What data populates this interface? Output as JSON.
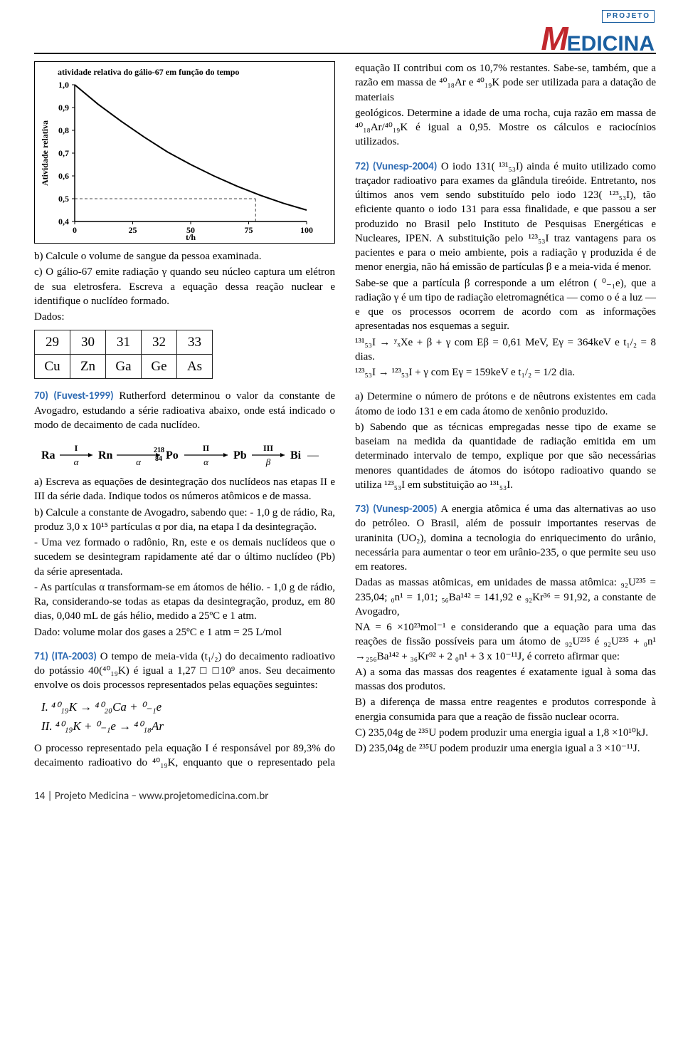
{
  "logo": {
    "projeto": "PROJETO",
    "main_rest": "EDICINA"
  },
  "chart": {
    "title": "atividade relativa do gálio-67 em função do tempo",
    "y_label": "Atividade relativa",
    "x_label": "t/h",
    "x_ticks": [
      "0",
      "25",
      "50",
      "75",
      "100"
    ],
    "y_ticks": [
      "0,4",
      "0,5",
      "0,6",
      "0,7",
      "0,8",
      "0,9",
      "1,0"
    ],
    "x_range": [
      0,
      100
    ],
    "y_range": [
      0.4,
      1.0
    ],
    "points": [
      [
        0,
        1.0
      ],
      [
        10,
        0.915
      ],
      [
        20,
        0.84
      ],
      [
        30,
        0.77
      ],
      [
        40,
        0.705
      ],
      [
        50,
        0.65
      ],
      [
        60,
        0.6
      ],
      [
        70,
        0.555
      ],
      [
        80,
        0.515
      ],
      [
        90,
        0.48
      ],
      [
        100,
        0.45
      ]
    ],
    "line_color": "#000000",
    "dash_color": "#444444",
    "axis_color": "#000000",
    "grid": false
  },
  "col1": {
    "p1": "b) Calcule o volume de sangue da pessoa examinada.",
    "p2": "c) O gálio-67 emite radiação γ quando seu núcleo captura um elétron de sua eletrosfera. Escreva a equação dessa reação nuclear e identifique o nuclídeo formado.",
    "p3": "Dados:",
    "ztable_top": [
      "29",
      "30",
      "31",
      "32",
      "33"
    ],
    "ztable_bot": [
      "Cu",
      "Zn",
      "Ga",
      "Ge",
      "As"
    ],
    "q70_tag": "70) (Fuvest-1999)",
    "q70_text": " Rutherford determinou o valor da constante de Avogadro, estudando a série radioativa abaixo, onde está indicado o modo de decaimento de cada nuclídeo.",
    "decay_labels": {
      "Ra": "Ra",
      "Rn": "Rn",
      "Po": "Po",
      "Pb": "Pb",
      "Bi": "Bi",
      "I": "I",
      "II": "II",
      "III": "III",
      "alpha": "α",
      "beta": "β",
      "mass": "218",
      "z": "84"
    },
    "q70_a": "a) Escreva as equações de desintegração dos nuclídeos nas etapas II e III da série dada. Indique todos os números atômicos e de massa.",
    "q70_b": "b) Calcule a constante de Avogadro, sabendo que: - 1,0 g de rádio, Ra, produz 3,0 x 10¹⁵ partículas α por dia, na etapa I da desintegração.",
    "q70_b2": "- Uma vez formado o radônio, Rn, este e os demais nuclídeos que o sucedem se desintegram rapidamente até dar o último nuclídeo (Pb) da série apresentada.",
    "q70_b3": "- As partículas α transformam-se em átomos de hélio. - 1,0 g de rádio, Ra, considerando-se todas as etapas da desintegração, produz, em 80 dias, 0,040 mL de gás hélio, medido a 25ºC e 1 atm.",
    "q70_b4": "Dado: volume molar dos gases a 25ºC e 1 atm = 25 L/mol",
    "q71_tag": "71) (ITA-2003)",
    "q71_text1": " O tempo de meia-vida (t₁/₂) do decaimento radioativo do potássio 40(⁴⁰₁₉K) é igual a 1,27 □ □10⁹ anos. Seu decaimento envolve os dois processos representados pelas equações seguintes:",
    "eqI": "I.   ⁴⁰₁₉K  →  ⁴⁰₂₀Ca  +  ⁰₋₁e",
    "eqII": "II.  ⁴⁰₁₉K  +  ⁰₋₁e  →  ⁴⁰₁₈Ar",
    "q71_text2": "O processo representado pela equação I é responsável por 89,3% do decaimento radioativo do ⁴⁰₁₉K, enquanto que o representado pela equação II contribui com os 10,7% restantes. Sabe-se, também, que a razão em massa de ⁴⁰₁₈Ar e ⁴⁰₁₉K pode ser utilizada para a datação de materiais"
  },
  "col2": {
    "q71_cont": "geológicos. Determine a idade de uma rocha, cuja razão em massa de ⁴⁰₁₈Ar/⁴⁰₁₉K é igual a 0,95. Mostre os cálculos e raciocínios utilizados.",
    "q72_tag": "72) (Vunesp-2004)",
    "q72_1": " O iodo 131( ¹³¹₅₃I) ainda é muito utilizado como traçador radioativo para exames da glândula tireóide. Entretanto, nos últimos anos vem sendo substituído pelo iodo 123( ¹²³₅₃I), tão eficiente quanto o iodo 131 para essa finalidade, e que passou a ser produzido no Brasil pelo Instituto de Pesquisas Energéticas e Nucleares, IPEN. A substituição pelo ¹²³₅₃I traz vantagens para os pacientes e para o meio ambiente, pois a radiação γ produzida é de menor energia, não há emissão de partículas β e a meia-vida é menor.",
    "q72_2": "Sabe-se que a partícula β corresponde a um elétron ( ⁰₋₁e), que a radiação γ é um tipo de radiação eletromagnética — como o é a luz — e que os processos ocorrem de acordo com as informações apresentadas nos esquemas a seguir.",
    "q72_rx1": "¹³¹₅₃I  →  ʸₓXe + β + γ        com Eβ = 0,61 MeV, Eγ = 364keV e t₁/₂ = 8 dias.",
    "q72_rx2": "¹²³₅₃I  →  ¹²³₅₃I + γ             com Eγ = 159keV e t₁/₂ = 1/2 dia.",
    "q72_a": "a) Determine o número de prótons e de nêutrons existentes em cada átomo de iodo 131 e em cada átomo de xenônio produzido.",
    "q72_b": "b) Sabendo que as técnicas empregadas nesse tipo de exame se baseiam na medida da quantidade de radiação emitida em um determinado intervalo de tempo, explique por que são necessárias menores quantidades de átomos do isótopo radioativo quando se utiliza ¹²³₅₃I em substituição ao ¹³¹₅₃I.",
    "q73_tag": "73) (Vunesp-2005)",
    "q73_1": " A energia atômica é uma das alternativas ao uso do petróleo. O Brasil, além de possuir importantes reservas de uraninita (UO₂), domina a tecnologia do enriquecimento do urânio, necessária para aumentar o teor em urânio-235, o que permite seu uso em reatores.",
    "q73_2": "Dadas as massas atômicas, em unidades de massa atômica: ₉₂U²³⁵ = 235,04; ₀n¹ = 1,01; ₅₆Ba¹⁴² = 141,92 e ₉₂Kr³⁶ = 91,92, a constante de Avogadro,",
    "q73_3": "NA = 6 ×10²³mol⁻¹ e considerando que a equação para uma das reações de fissão possíveis para um átomo de ₉₂U²³⁵ é ₉₂U²³⁵ + ₀n¹ →₂₅₆Ba¹⁴² + ₃₆Kr⁹² + 2 ₀n¹ + 3 x 10⁻¹¹J, é correto afirmar que:",
    "q73_A": "A) a soma das massas dos reagentes é exatamente igual à soma das massas dos produtos.",
    "q73_B": "B) a diferença de massa entre reagentes e produtos corresponde à energia consumida para que a reação de fissão nuclear ocorra.",
    "q73_C": "C) 235,04g de ²³⁵U podem produzir uma energia igual a 1,8 ×10¹⁰kJ.",
    "q73_D": "D) 235,04g de ²³⁵U podem produzir uma energia igual a 3 ×10⁻¹¹J."
  },
  "footer": "14 | Projeto Medicina – www.projetomedicina.com.br"
}
